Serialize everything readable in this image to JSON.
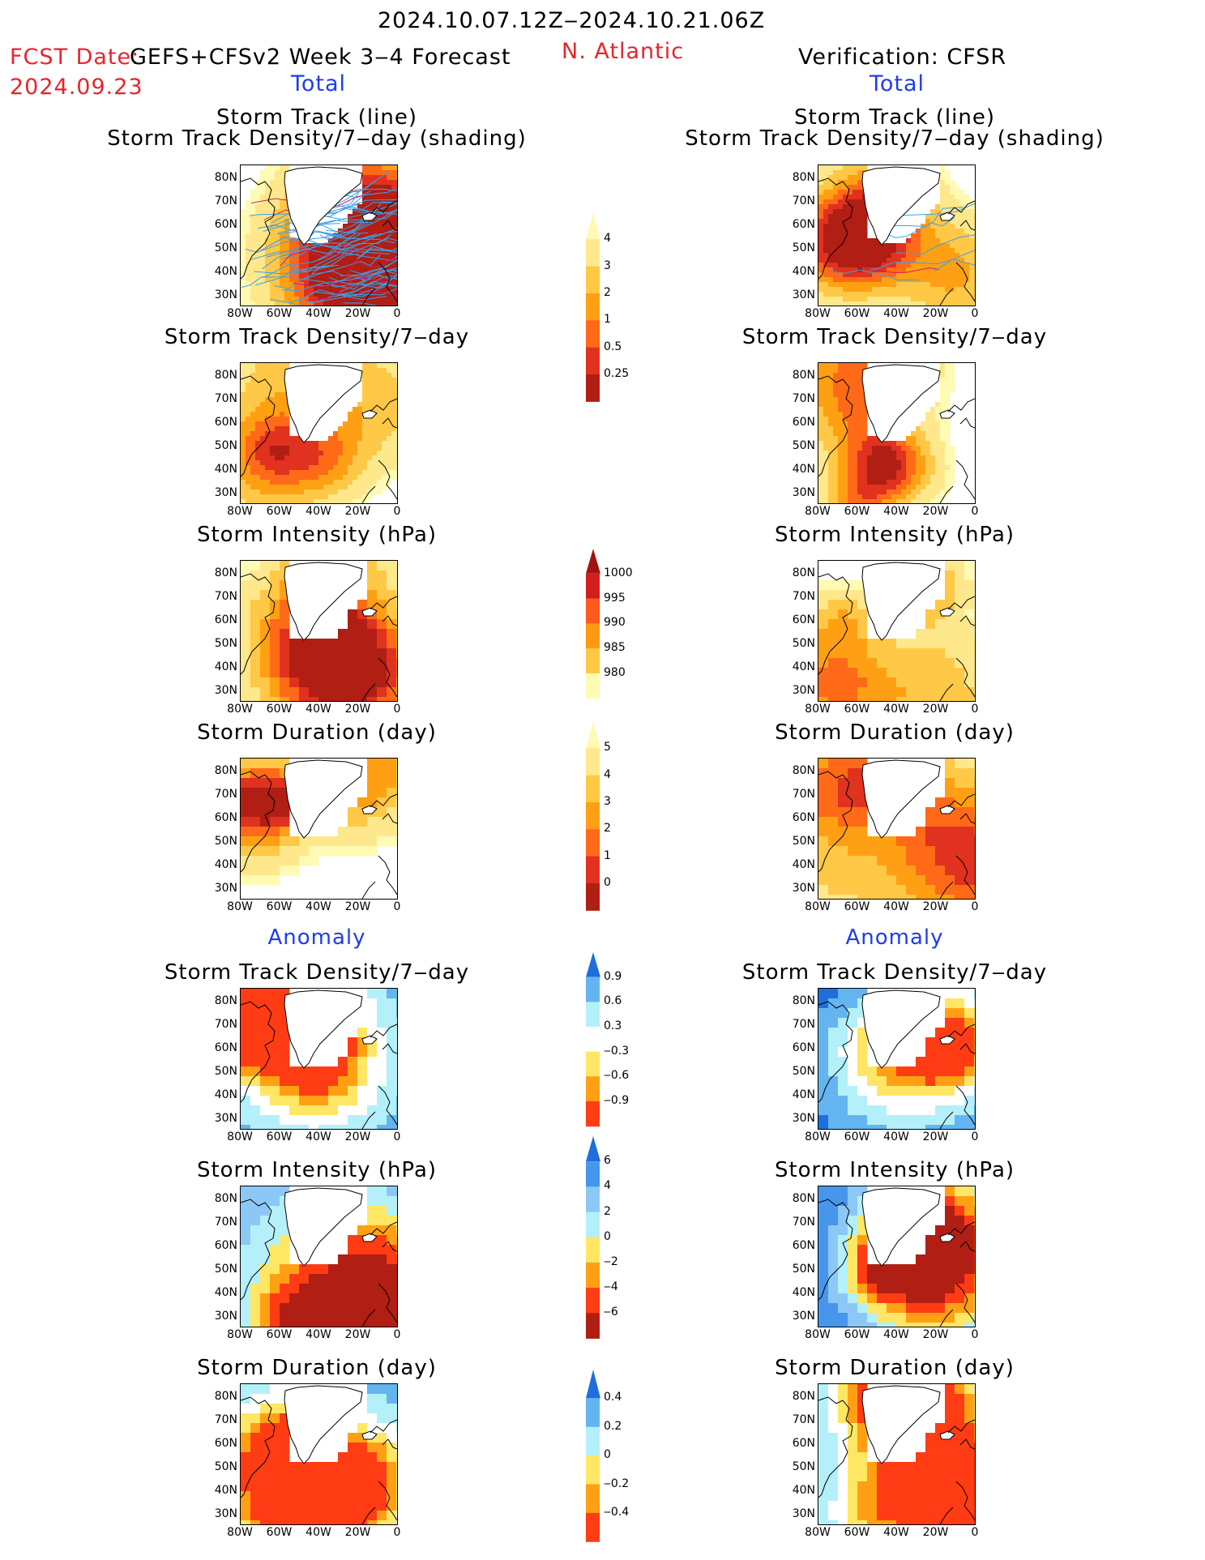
{
  "header": {
    "date_range": "2024.10.07.12Z‒2024.10.21.06Z",
    "fcst_label": "FCST Date:",
    "fcst_model": "GEFS+CFSv2 Week 3‒4 Forecast",
    "fcst_date": "2024.09.23",
    "region": "N. Atlantic",
    "verification": "Verification: CFSR",
    "left_total": "Total",
    "right_total": "Total"
  },
  "sections": {
    "anomaly_left": "Anomaly",
    "anomaly_right": "Anomaly"
  },
  "panel_titles": {
    "track_line": "Storm Track (line)",
    "track_shading": "Storm Track Density/7‒day (shading)",
    "density": "Storm Track Density/7‒day",
    "intensity": "Storm Intensity (hPa)",
    "duration": "Storm Duration (day)"
  },
  "axes": {
    "lat_labels": [
      "80N",
      "70N",
      "60N",
      "50N",
      "40N",
      "30N"
    ],
    "lon_labels": [
      "80W",
      "60W",
      "40W",
      "20W",
      "0"
    ]
  },
  "colorbars": {
    "density_total": {
      "labels": [
        "4",
        "3",
        "2",
        "1",
        "0.5",
        "0.25"
      ],
      "colors": [
        "#b01e14",
        "#e0321e",
        "#ff6a19",
        "#ffa014",
        "#ffc846",
        "#ffe88c",
        "#fffab4"
      ]
    },
    "intensity_total": {
      "labels": [
        "1000",
        "995",
        "990",
        "985",
        "980"
      ],
      "colors": [
        "#fffab4",
        "#ffc846",
        "#ff9a14",
        "#ff5a1e",
        "#d21e1e",
        "#a0140f"
      ]
    },
    "duration_total": {
      "labels": [
        "5",
        "4",
        "3",
        "2",
        "1",
        "0"
      ],
      "colors": [
        "#b01e14",
        "#e0321e",
        "#ff6a19",
        "#ffa014",
        "#ffc846",
        "#ffe88c",
        "#fffab4"
      ]
    },
    "density_anom": {
      "labels": [
        "0.9",
        "0.6",
        "0.3",
        "‒0.3",
        "‒0.6",
        "‒0.9"
      ],
      "colors": [
        "#ff3c14",
        "#ffa014",
        "#ffe664",
        "#ffffff",
        "#b4f0fa",
        "#64b4f0",
        "#1e6edc"
      ]
    },
    "intensity_anom": {
      "labels": [
        "6",
        "4",
        "2",
        "0",
        "‒2",
        "‒4",
        "‒6"
      ],
      "colors": [
        "#b01e14",
        "#ff3c14",
        "#ffa014",
        "#ffe664",
        "#b4f0fa",
        "#8cc8f5",
        "#4696eb",
        "#1e6edc"
      ]
    },
    "duration_anom": {
      "labels": [
        "0.4",
        "0.2",
        "0",
        "‒0.2",
        "‒0.4"
      ],
      "colors": [
        "#ff3c14",
        "#ffa014",
        "#ffe664",
        "#b4f0fa",
        "#64b4f0",
        "#1e6edc"
      ]
    }
  }
}
